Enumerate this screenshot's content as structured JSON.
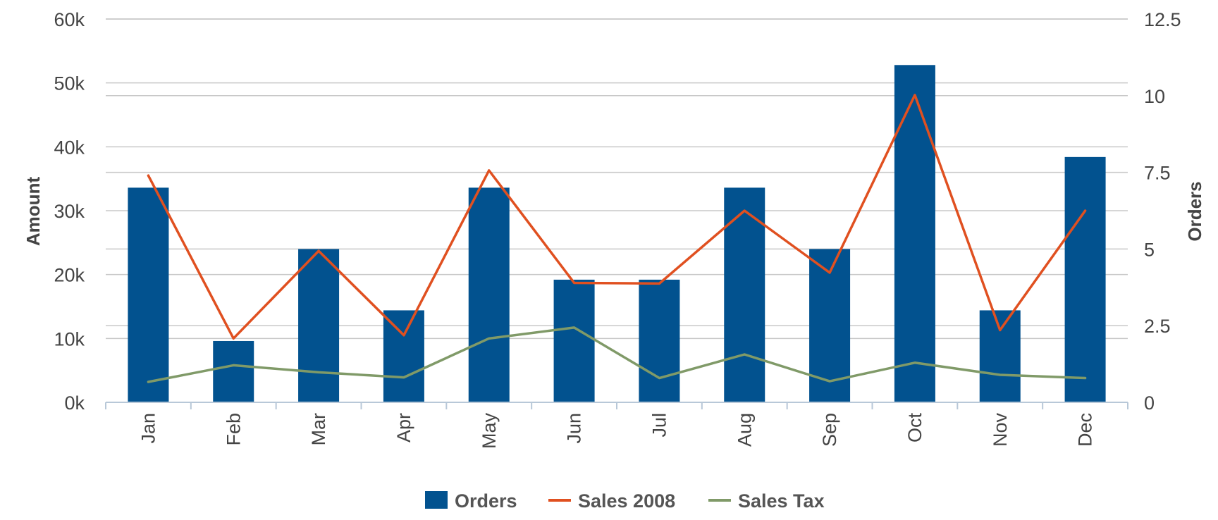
{
  "chart_data": {
    "type": "bar",
    "categories": [
      "Jan",
      "Feb",
      "Mar",
      "Apr",
      "May",
      "Jun",
      "Jul",
      "Aug",
      "Sep",
      "Oct",
      "Nov",
      "Dec"
    ],
    "left_axis": {
      "label": "Amount",
      "range": [
        0,
        60000
      ],
      "ticks": [
        0,
        10000,
        20000,
        30000,
        40000,
        50000,
        60000
      ],
      "tick_labels": [
        "0k",
        "10k",
        "20k",
        "30k",
        "40k",
        "50k",
        "60k"
      ]
    },
    "right_axis": {
      "label": "Orders",
      "range": [
        0,
        12.5
      ],
      "ticks": [
        0,
        2.5,
        5,
        7.5,
        10,
        12.5
      ],
      "tick_labels": [
        "0",
        "2.5",
        "5",
        "7.5",
        "10",
        "12.5"
      ]
    },
    "series": [
      {
        "name": "Orders",
        "type": "bar",
        "axis": "right",
        "color": "#02528f",
        "values": [
          7,
          2,
          5,
          3,
          7,
          4,
          4,
          7,
          5,
          11,
          3,
          8
        ]
      },
      {
        "name": "Sales 2008",
        "type": "line",
        "axis": "left",
        "color": "#e05020",
        "values": [
          35500,
          10000,
          23700,
          10500,
          36300,
          18700,
          18600,
          30000,
          20300,
          48100,
          11300,
          30000
        ]
      },
      {
        "name": "Sales Tax",
        "type": "line",
        "axis": "left",
        "color": "#809a68",
        "values": [
          3200,
          5800,
          4700,
          3900,
          10000,
          11700,
          3800,
          7500,
          3300,
          6200,
          4300,
          3800
        ]
      }
    ],
    "grid": true,
    "legend_position": "bottom"
  }
}
